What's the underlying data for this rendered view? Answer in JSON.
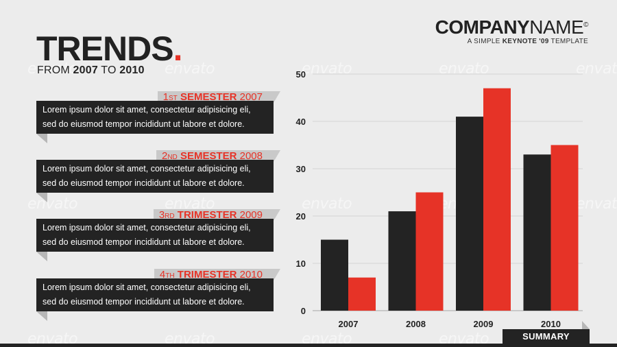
{
  "brand": {
    "name_bold": "COMPANY",
    "name_light": "NAME",
    "mark": "©",
    "tag_pre": "A SIMPLE ",
    "tag_bold": "KEYNOTE '09",
    "tag_post": " TEMPLATE"
  },
  "title": {
    "text": "TRENDS",
    "dot": "."
  },
  "subtitle": {
    "from": "FROM ",
    "y1": "2007",
    "to": " TO ",
    "y2": "2010"
  },
  "watermark": "envato",
  "blocks": [
    {
      "num": "1",
      "ord": "ST",
      "label": "SEMESTER",
      "year": "2007",
      "body_line1": "Lorem ipsum dolor sit amet, consectetur adipisicing eli,",
      "body_line2": "sed do eiusmod tempor incididunt ut labore et dolore."
    },
    {
      "num": "2",
      "ord": "ND",
      "label": "SEMESTER",
      "year": "2008",
      "body_line1": "Lorem ipsum dolor sit amet, consectetur adipisicing eli,",
      "body_line2": "sed do eiusmod tempor incididunt ut labore et dolore."
    },
    {
      "num": "3",
      "ord": "RD",
      "label": "TRIMESTER",
      "year": "2009",
      "body_line1": "Lorem ipsum dolor sit amet, consectetur adipisicing eli,",
      "body_line2": "sed do eiusmod tempor incididunt ut labore et dolore."
    },
    {
      "num": "4",
      "ord": "TH",
      "label": "TRIMESTER",
      "year": "2010",
      "body_line1": "Lorem ipsum dolor sit amet, consectetur adipisicing eli,",
      "body_line2": "sed do eiusmod tempor incididunt ut labore et dolore."
    }
  ],
  "summary_label": "SUMMARY",
  "colors": {
    "dark": "#232323",
    "accent": "#e63327",
    "background": "#ececec"
  },
  "chart_data": {
    "type": "bar",
    "categories": [
      "2007",
      "2008",
      "2009",
      "2010"
    ],
    "series": [
      {
        "values": [
          15,
          21,
          41,
          33
        ],
        "color": "#232323"
      },
      {
        "values": [
          7,
          25,
          47,
          35
        ],
        "color": "#e63327"
      }
    ],
    "ylim": [
      0,
      50
    ],
    "yticks": [
      "0",
      "10",
      "20",
      "30",
      "40",
      "50"
    ],
    "grid": true,
    "legend": "none",
    "title": "",
    "xlabel": "",
    "ylabel": ""
  }
}
